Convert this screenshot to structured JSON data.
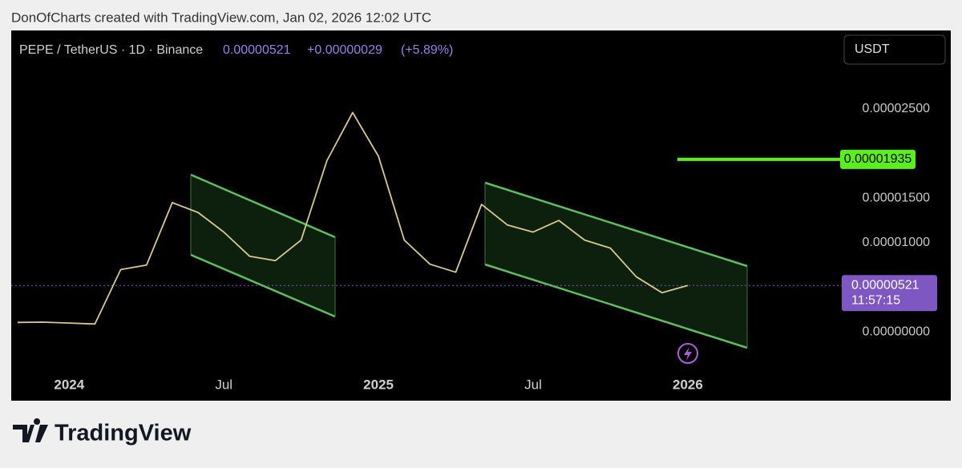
{
  "header": {
    "credit": "DonOfCharts created with TradingView.com, Jan 02, 2026 12:02 UTC"
  },
  "logo": "TradingView",
  "currency_button": "USDT",
  "chart_data": {
    "type": "line",
    "symbol": "PEPE / TetherUS · 1D · Binance",
    "last_price_text": "0.00000521",
    "change": "+0.00000029",
    "change_percent": "(+5.89%)",
    "x": [
      "2023-11",
      "2023-12",
      "2024-01",
      "2024-02",
      "2024-03",
      "2024-04",
      "2024-05",
      "2024-06",
      "2024-07",
      "2024-08",
      "2024-09",
      "2024-10",
      "2024-11",
      "2024-12",
      "2025-01",
      "2025-02",
      "2025-03",
      "2025-04",
      "2025-05",
      "2025-06",
      "2025-07",
      "2025-08",
      "2025-09",
      "2025-10",
      "2025-11",
      "2025-12",
      "2026-01"
    ],
    "series": [
      {
        "name": "PEPE / TetherUS",
        "color": "#d9c98c",
        "values": [
          1.08e-06,
          1.1e-06,
          1e-06,
          9e-07,
          7e-06,
          7.5e-06,
          1.45e-05,
          1.34e-05,
          1.12e-05,
          8.5e-06,
          8e-06,
          1.03e-05,
          1.92e-05,
          2.46e-05,
          1.97e-05,
          1.03e-05,
          7.6e-06,
          6.7e-06,
          1.43e-05,
          1.2e-05,
          1.12e-05,
          1.25e-05,
          1.03e-05,
          9.4e-06,
          6.2e-06,
          4.4e-06,
          5.21e-06
        ]
      }
    ],
    "xticks": [
      {
        "value": "2024-01",
        "label": "2024"
      },
      {
        "value": "2024-07",
        "label": "Jul"
      },
      {
        "value": "2025-01",
        "label": "2025"
      },
      {
        "value": "2025-07",
        "label": "Jul"
      },
      {
        "value": "2026-01",
        "label": "2026"
      }
    ],
    "ylim": [
      -7.7e-06,
      3.38e-05
    ],
    "yticks": [
      {
        "value": 0,
        "label": "0.00000000"
      },
      {
        "value": 1e-05,
        "label": "0.00001000"
      },
      {
        "value": 1.5e-05,
        "label": "0.00001500"
      },
      {
        "value": 2.5e-05,
        "label": "0.00002500"
      }
    ],
    "grid": false,
    "target": {
      "value": 1.935e-05,
      "label": "0.00001935",
      "color": "#5af01e"
    },
    "last_price": {
      "value": 5.21e-06,
      "label": "0.00000521",
      "countdown": "11:57:15",
      "color": "#7e57c2"
    }
  }
}
